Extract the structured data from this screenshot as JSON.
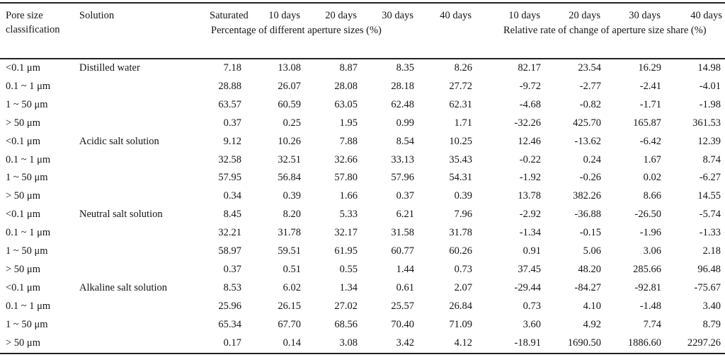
{
  "page": {
    "background": "#ffffff",
    "text_color": "#151515",
    "rule_color": "#222222"
  },
  "table": {
    "header": {
      "pore_size_label": "Pore size classification",
      "solution_label": "Solution",
      "saturated_label": "Saturated",
      "days": [
        "10 days",
        "20 days",
        "30 days",
        "40 days"
      ],
      "group1_subtitle": "Percentage of different aperture sizes (%)",
      "group2_subtitle": "Relative rate of change of aperture size share (%)"
    },
    "groups": [
      {
        "solution": "Distilled water",
        "rows": [
          {
            "pore": "<0.1 μm",
            "values": [
              "7.18",
              "13.08",
              "8.87",
              "8.35",
              "8.26",
              "82.17",
              "23.54",
              "16.29",
              "14.98"
            ]
          },
          {
            "pore": "0.1 ~ 1 μm",
            "values": [
              "28.88",
              "26.07",
              "28.08",
              "28.18",
              "27.72",
              "-9.72",
              "-2.77",
              "-2.41",
              "-4.01"
            ]
          },
          {
            "pore": "1 ~ 50 μm",
            "values": [
              "63.57",
              "60.59",
              "63.05",
              "62.48",
              "62.31",
              "-4.68",
              "-0.82",
              "-1.71",
              "-1.98"
            ]
          },
          {
            "pore": "> 50 μm",
            "values": [
              "0.37",
              "0.25",
              "1.95",
              "0.99",
              "1.71",
              "-32.26",
              "425.70",
              "165.87",
              "361.53"
            ]
          }
        ]
      },
      {
        "solution": "Acidic salt solution",
        "rows": [
          {
            "pore": "<0.1 μm",
            "values": [
              "9.12",
              "10.26",
              "7.88",
              "8.54",
              "10.25",
              "12.46",
              "-13.62",
              "-6.42",
              "12.39"
            ]
          },
          {
            "pore": "0.1 ~ 1 μm",
            "values": [
              "32.58",
              "32.51",
              "32.66",
              "33.13",
              "35.43",
              "-0.22",
              "0.24",
              "1.67",
              "8.74"
            ]
          },
          {
            "pore": "1 ~ 50 μm",
            "values": [
              "57.95",
              "56.84",
              "57.80",
              "57.96",
              "54.31",
              "-1.92",
              "-0.26",
              "0.02",
              "-6.27"
            ]
          },
          {
            "pore": "> 50 μm",
            "values": [
              "0.34",
              "0.39",
              "1.66",
              "0.37",
              "0.39",
              "13.78",
              "382.26",
              "8.66",
              "14.55"
            ]
          }
        ]
      },
      {
        "solution": "Neutral salt solution",
        "rows": [
          {
            "pore": "<0.1 μm",
            "values": [
              "8.45",
              "8.20",
              "5.33",
              "6.21",
              "7.96",
              "-2.92",
              "-36.88",
              "-26.50",
              "-5.74"
            ]
          },
          {
            "pore": "0.1 ~ 1 μm",
            "values": [
              "32.21",
              "31.78",
              "32.17",
              "31.58",
              "31.78",
              "-1.34",
              "-0.15",
              "-1.96",
              "-1.33"
            ]
          },
          {
            "pore": "1 ~ 50 μm",
            "values": [
              "58.97",
              "59.51",
              "61.95",
              "60.77",
              "60.26",
              "0.91",
              "5.06",
              "3.06",
              "2.18"
            ]
          },
          {
            "pore": "> 50 μm",
            "values": [
              "0.37",
              "0.51",
              "0.55",
              "1.44",
              "0.73",
              "37.45",
              "48.20",
              "285.66",
              "96.48"
            ]
          }
        ]
      },
      {
        "solution": "Alkaline salt solution",
        "rows": [
          {
            "pore": "<0.1 μm",
            "values": [
              "8.53",
              "6.02",
              "1.34",
              "0.61",
              "2.07",
              "-29.44",
              "-84.27",
              "-92.81",
              "-75.67"
            ]
          },
          {
            "pore": "0.1 ~ 1 μm",
            "values": [
              "25.96",
              "26.15",
              "27.02",
              "25.57",
              "26.84",
              "0.73",
              "4.10",
              "-1.48",
              "3.40"
            ]
          },
          {
            "pore": "1 ~ 50 μm",
            "values": [
              "65.34",
              "67.70",
              "68.56",
              "70.40",
              "71.09",
              "3.60",
              "4.92",
              "7.74",
              "8.79"
            ]
          },
          {
            "pore": "> 50 μm",
            "values": [
              "0.17",
              "0.14",
              "3.08",
              "3.42",
              "4.12",
              "-18.91",
              "1690.50",
              "1886.60",
              "2297.26"
            ]
          }
        ]
      }
    ]
  }
}
